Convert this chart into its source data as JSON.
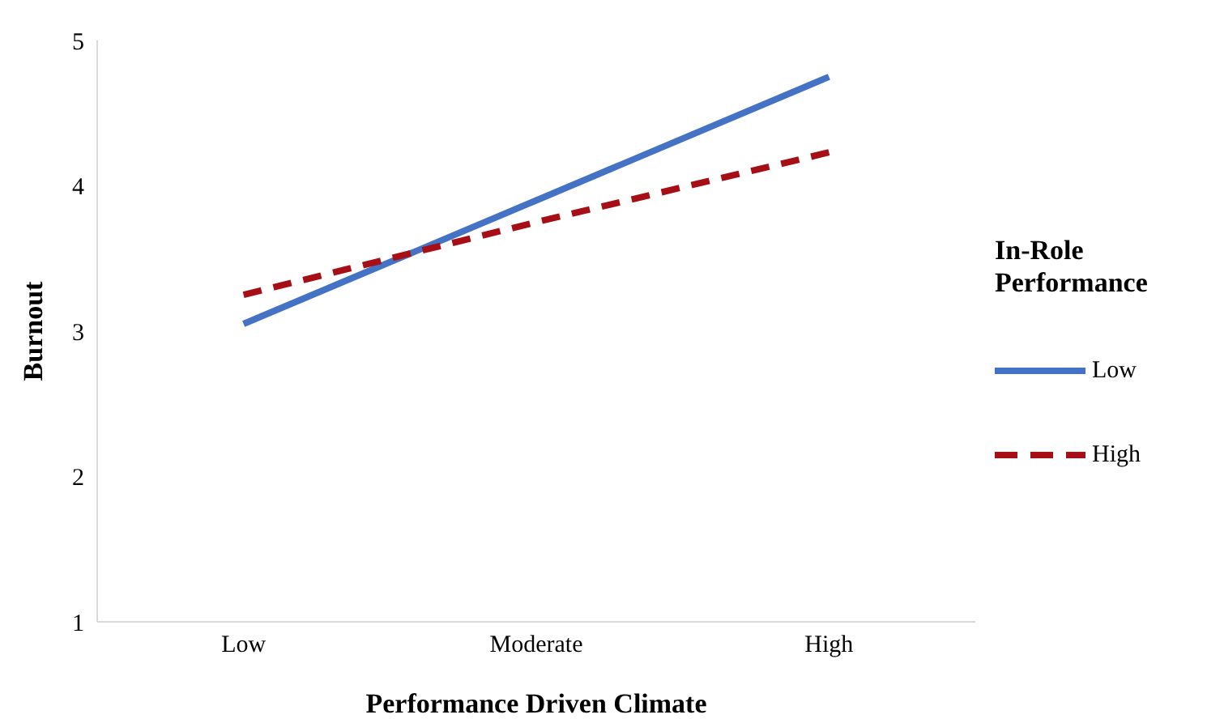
{
  "chart_data": {
    "type": "line",
    "xlabel": "Performance Driven Climate",
    "ylabel": "Burnout",
    "legend_title": "In-Role Performance",
    "categories": [
      "Low",
      "Moderate",
      "High"
    ],
    "series": [
      {
        "name": "Low",
        "color": "#4472c4",
        "values": [
          3.05,
          3.9,
          4.75
        ],
        "line_style": "solid"
      },
      {
        "name": "High",
        "color": "#a50f15",
        "values": [
          3.25,
          3.75,
          4.23
        ],
        "line_style": "dashed"
      }
    ],
    "ylim": [
      1,
      5
    ],
    "yticks": [
      1,
      2,
      3,
      4,
      5
    ],
    "legend": "right",
    "marker": "none"
  }
}
